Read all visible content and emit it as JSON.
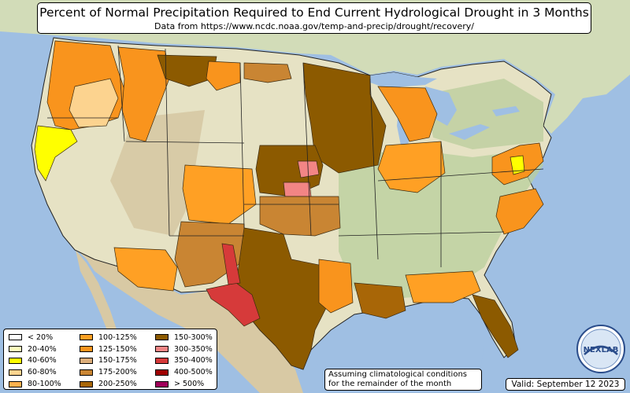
{
  "title": "Percent of Normal Precipitation Required to End Current Hydrological Drought in 3 Months",
  "subtitle": "Data from https://www.ncdc.noaa.gov/temp-and-precip/drought/recovery/",
  "note": {
    "line1": "Assuming climatological conditions",
    "line2": "for the remainder of the month"
  },
  "valid": "Valid: September 12 2023",
  "logo_text": "NEXLAB",
  "colors": {
    "ocean": "#9fbfe3",
    "land": "#e6e2c4",
    "terrain_green": "#a9c79a",
    "terrain_brown": "#c9b48f",
    "canada": "#d2dcb8",
    "mexico": "#d8c9a4",
    "state_border": "#222222"
  },
  "legend": {
    "columns": [
      [
        {
          "label": "< 20%",
          "color": "#ffffff"
        },
        {
          "label": "20-40%",
          "color": "#ffffbe"
        },
        {
          "label": "40-60%",
          "color": "#ffff00"
        },
        {
          "label": "60-80%",
          "color": "#fcd38f"
        },
        {
          "label": "80-100%",
          "color": "#ffb14e"
        }
      ],
      [
        {
          "label": "100-125%",
          "color": "#ffa024"
        },
        {
          "label": "125-150%",
          "color": "#f9941d"
        },
        {
          "label": "150-175%",
          "color": "#dcae7a"
        },
        {
          "label": "175-200%",
          "color": "#c98533"
        },
        {
          "label": "200-250%",
          "color": "#a86607"
        }
      ],
      [
        {
          "label": "150-300%",
          "color": "#8c5a00"
        },
        {
          "label": "300-350%",
          "color": "#f28585"
        },
        {
          "label": "350-400%",
          "color": "#d63a3a"
        },
        {
          "label": "400-500%",
          "color": "#a00000"
        },
        {
          "label": "> 500%",
          "color": "#a0005a"
        }
      ]
    ]
  },
  "regions": [
    {
      "name": "Pacific Northwest coast",
      "category": "125-150%"
    },
    {
      "name": "Northern California",
      "category": "40-60%"
    },
    {
      "name": "Idaho / western Montana",
      "category": "125-150%"
    },
    {
      "name": "Eastern Montana / North Dakota",
      "category": "150-300%"
    },
    {
      "name": "Minnesota / Wisconsin / Iowa",
      "category": "150-300%"
    },
    {
      "name": "Michigan",
      "category": "125-150%"
    },
    {
      "name": "Nebraska / Kansas",
      "category": "150-300%"
    },
    {
      "name": "Central Kansas",
      "category": "300-350%"
    },
    {
      "name": "Colorado",
      "category": "125-150%"
    },
    {
      "name": "New Mexico / West Texas",
      "category": "150-300%"
    },
    {
      "name": "Southern Arizona",
      "category": "175-200%"
    },
    {
      "name": "Big Bend Texas",
      "category": "350-400%"
    },
    {
      "name": "Louisiana",
      "category": "200-250%"
    },
    {
      "name": "Florida panhandle and peninsula",
      "category": "150-300%"
    },
    {
      "name": "Carolinas coast",
      "category": "125-150%"
    },
    {
      "name": "Mid-Atlantic",
      "category": "125-150%"
    },
    {
      "name": "Delmarva",
      "category": "40-60%"
    }
  ]
}
